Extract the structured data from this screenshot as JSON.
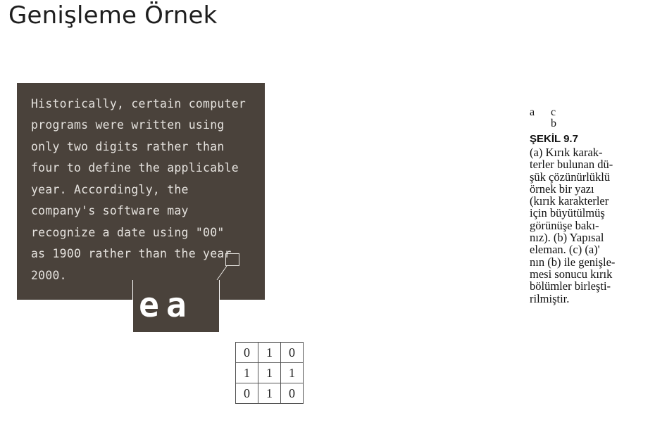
{
  "slide": {
    "title": "Genişleme Örnek"
  },
  "sample_text": {
    "lines": [
      "Historically, certain computer",
      "programs were written using",
      "only two digits rather than",
      "four to define the applicable",
      "year. Accordingly, the",
      "company's software may",
      "recognize a date using \"00\"",
      "as 1900 rather than the year",
      "2000."
    ],
    "magnified_glyphs": "ea"
  },
  "structuring_element": {
    "rows": [
      [
        "0",
        "1",
        "0"
      ],
      [
        "1",
        "1",
        "1"
      ],
      [
        "0",
        "1",
        "0"
      ]
    ]
  },
  "caption": {
    "panel_a": "a",
    "panel_b": "b",
    "panel_c": "c",
    "figure_label": "ŞEKİL 9.7",
    "lines": [
      "(a) Kırık karak-",
      "terler bulunan dü-",
      "şük çözünürlüklü",
      "örnek bir yazı",
      "(kırık karakterler",
      "için büyütülmüş",
      "görünüşe bakı-",
      "nız). (b) Yapısal",
      "eleman. (c) (a)'",
      "nın (b) ile genişle-",
      "mesi sonucu kırık",
      "bölümler birleşti-",
      "rilmiştir."
    ]
  }
}
